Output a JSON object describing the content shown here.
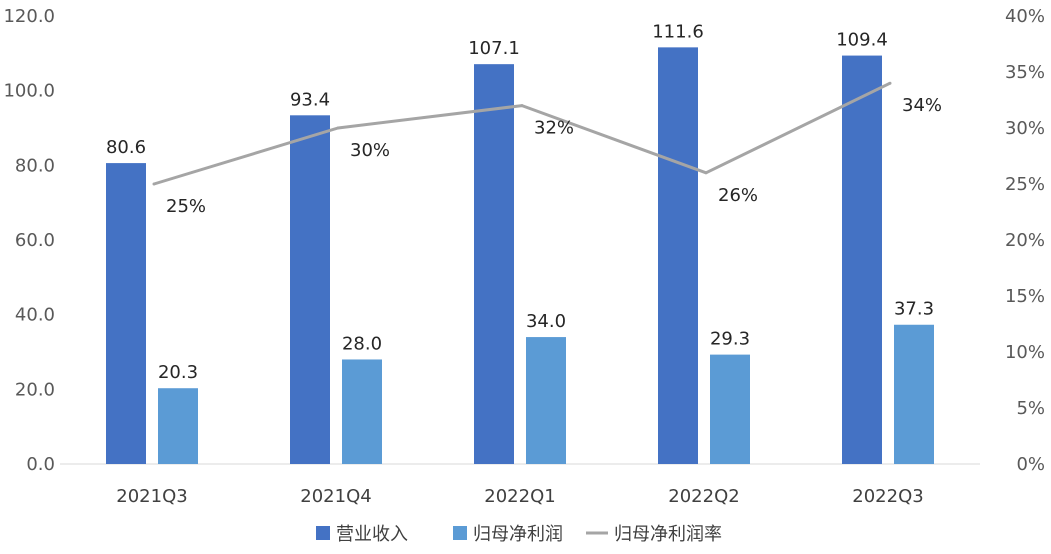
{
  "chart_data": {
    "type": "bar",
    "categories": [
      "2021Q3",
      "2021Q4",
      "2022Q1",
      "2022Q2",
      "2022Q3"
    ],
    "series": [
      {
        "name": "营业收入",
        "kind": "bar",
        "axis": "left",
        "color": "#4472C4",
        "values": [
          80.6,
          93.4,
          107.1,
          111.6,
          109.4
        ],
        "labels": [
          "80.6",
          "93.4",
          "107.1",
          "111.6",
          "109.4"
        ]
      },
      {
        "name": "归母净利润",
        "kind": "bar",
        "axis": "left",
        "color": "#5B9BD5",
        "values": [
          20.3,
          28.0,
          34.0,
          29.3,
          37.3
        ],
        "labels": [
          "20.3",
          "28.0",
          "34.0",
          "29.3",
          "37.3"
        ]
      },
      {
        "name": "归母净利润率",
        "kind": "line",
        "axis": "right",
        "color": "#A5A5A5",
        "values": [
          0.25,
          0.3,
          0.32,
          0.26,
          0.34
        ],
        "labels": [
          "25%",
          "30%",
          "32%",
          "26%",
          "34%"
        ]
      }
    ],
    "y_left": {
      "min": 0,
      "max": 120,
      "ticks": [
        "0.0",
        "20.0",
        "40.0",
        "60.0",
        "80.0",
        "100.0",
        "120.0"
      ]
    },
    "y_right": {
      "min": 0,
      "max": 0.4,
      "ticks": [
        "0%",
        "5%",
        "10%",
        "15%",
        "20%",
        "25%",
        "30%",
        "35%",
        "40%"
      ]
    },
    "grid": false,
    "legend_position": "bottom"
  }
}
